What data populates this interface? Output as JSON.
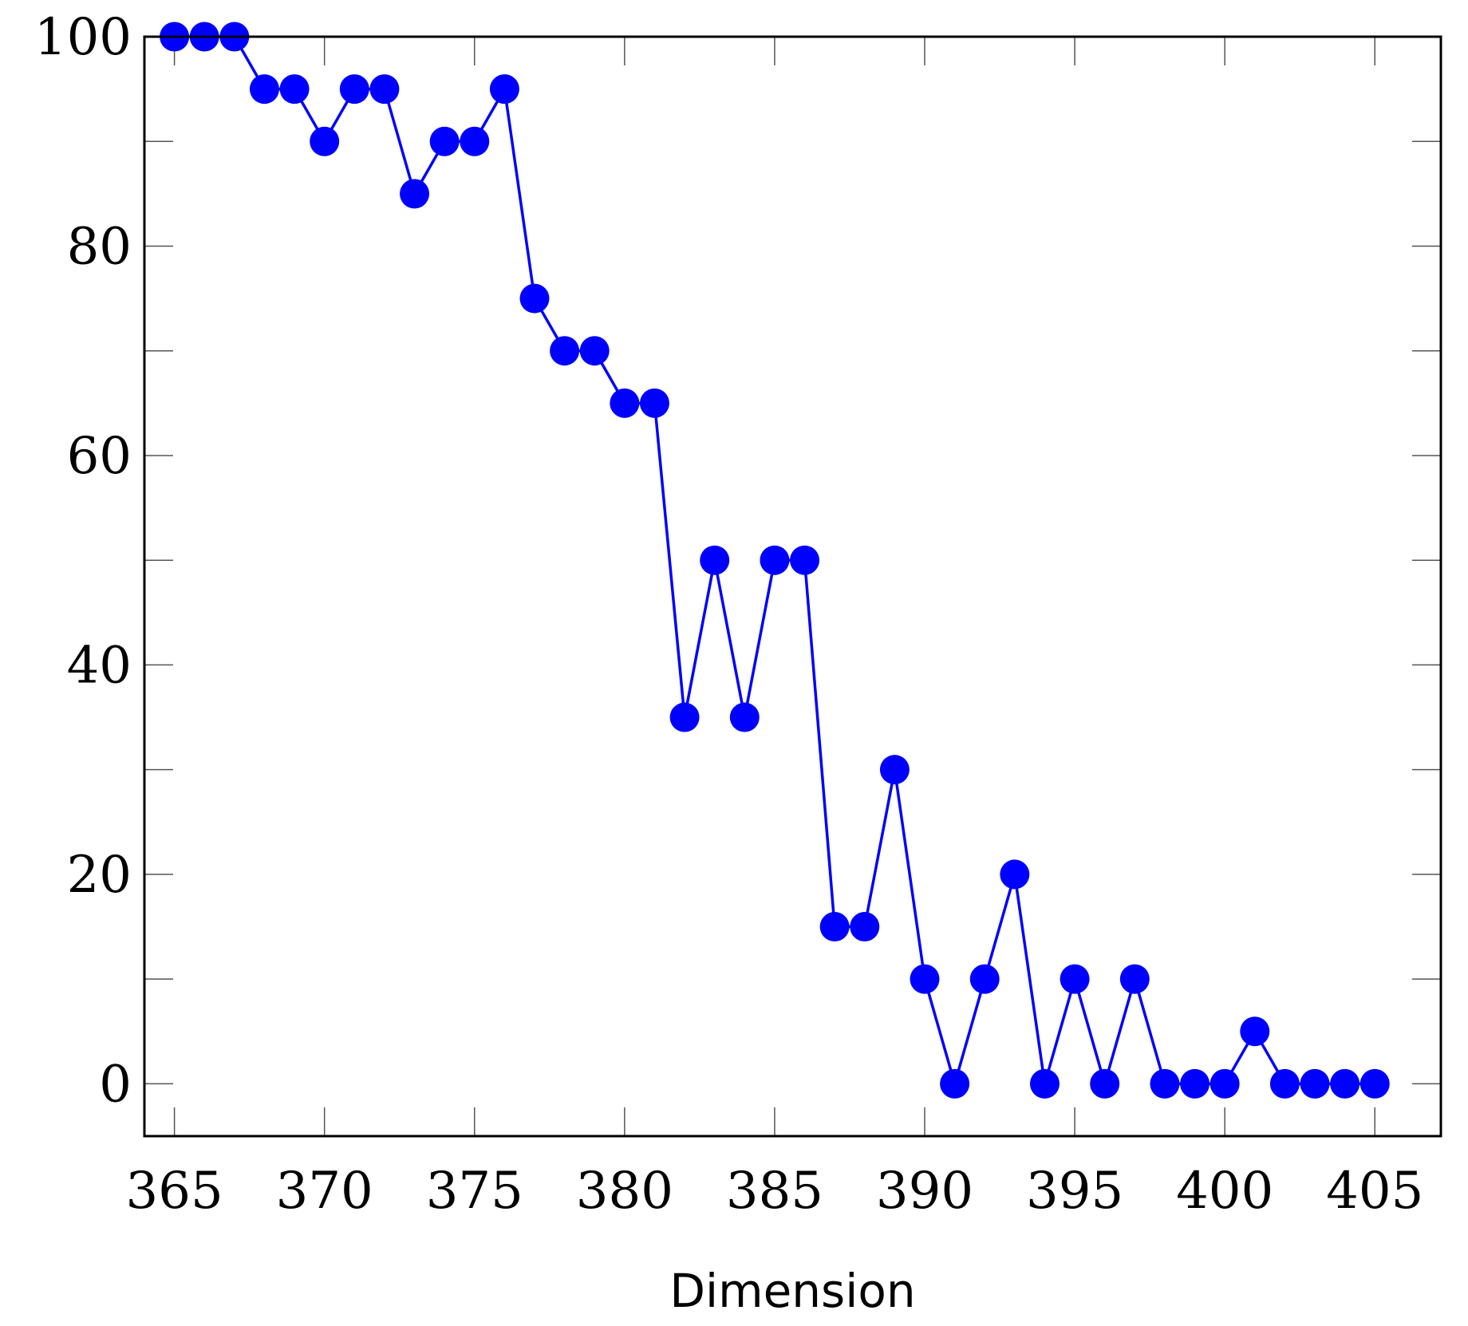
{
  "chart_data": {
    "type": "line",
    "title": "",
    "xlabel": "Dimension",
    "ylabel": "",
    "xlim": [
      364,
      407.2
    ],
    "ylim": [
      -5,
      100
    ],
    "xticks": [
      365,
      370,
      375,
      380,
      385,
      390,
      395,
      400,
      405
    ],
    "yticks": [
      0,
      20,
      40,
      60,
      80,
      100
    ],
    "yminor_ticks": [
      10,
      30,
      50,
      70,
      90
    ],
    "grid": false,
    "legend": "none",
    "color": "#0000ff",
    "marker": "circle",
    "series": [
      {
        "x": [
          365,
          366,
          367,
          368,
          369,
          370,
          371,
          372,
          373,
          374,
          375,
          376,
          377,
          378,
          379,
          380,
          381,
          382,
          383,
          384,
          385,
          386,
          387,
          388,
          389,
          390,
          391,
          392,
          393,
          394,
          395,
          396,
          397,
          398,
          399,
          400,
          401,
          402,
          403,
          404,
          405
        ],
        "y": [
          100,
          100,
          100,
          95,
          95,
          90,
          95,
          95,
          85,
          90,
          90,
          95,
          75,
          70,
          70,
          65,
          65,
          35,
          50,
          35,
          50,
          50,
          15,
          15,
          30,
          10,
          0,
          10,
          20,
          0,
          10,
          0,
          10,
          0,
          0,
          0,
          5,
          0,
          0,
          0,
          0
        ]
      }
    ]
  }
}
